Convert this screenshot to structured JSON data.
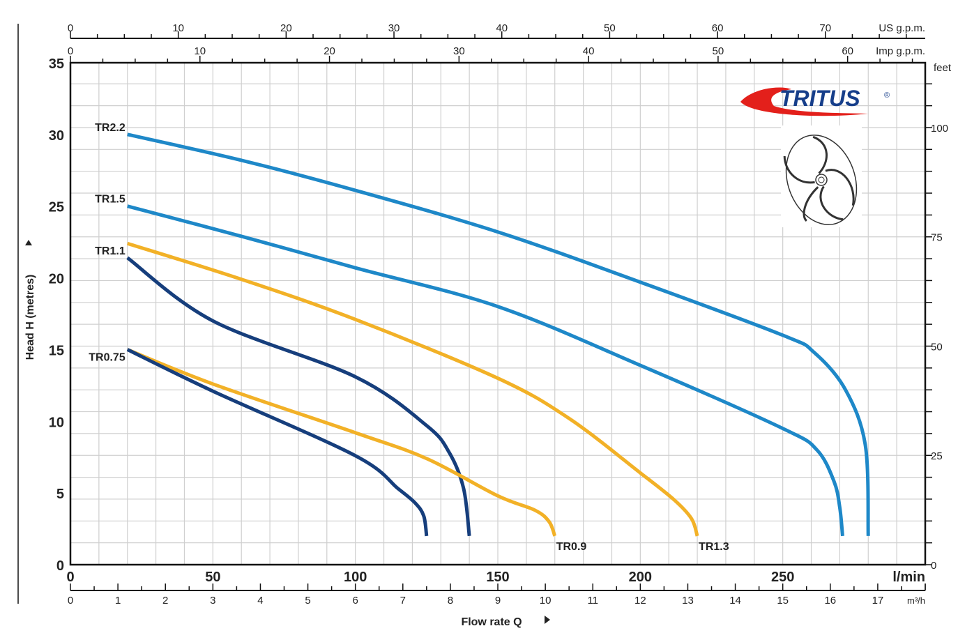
{
  "chart_data": {
    "type": "line",
    "title": "",
    "xlabel": "Flow rate Q",
    "ylabel": "Head H (metres)",
    "xlim": [
      0,
      300
    ],
    "ylim": [
      0,
      35
    ],
    "grid": true,
    "x_unit": "l/min",
    "x_ticks": [
      0,
      50,
      100,
      150,
      200,
      250
    ],
    "y_ticks": [
      0,
      5,
      10,
      15,
      20,
      25,
      30,
      35
    ],
    "secondary_axes": {
      "us_gpm": {
        "label": "US g.p.m.",
        "ticks": [
          0,
          10,
          20,
          30,
          40,
          50,
          60,
          70
        ]
      },
      "imp_gpm": {
        "label": "Imp g.p.m.",
        "ticks": [
          0,
          10,
          20,
          30,
          40,
          50,
          60
        ]
      },
      "m3h": {
        "label": "m³/h",
        "ticks": [
          0,
          1,
          2,
          3,
          4,
          5,
          6,
          7,
          8,
          9,
          10,
          11,
          12,
          13,
          14,
          15,
          16,
          17
        ]
      },
      "feet": {
        "label": "feet",
        "ticks": [
          0,
          25,
          50,
          75,
          100
        ]
      }
    },
    "series": [
      {
        "name": "TR2.2",
        "color": "#1e88c8",
        "label_pos": "start",
        "x": [
          20,
          60,
          100,
          150,
          200,
          250,
          261,
          272,
          279,
          280
        ],
        "y": [
          30,
          28.2,
          26.1,
          23.2,
          19.7,
          16,
          14.8,
          12.2,
          8.3,
          2
        ]
      },
      {
        "name": "TR1.5",
        "color": "#1e88c8",
        "label_pos": "start",
        "x": [
          20,
          60,
          100,
          150,
          200,
          250,
          262,
          268,
          270,
          271
        ],
        "y": [
          25,
          22.9,
          20.7,
          18,
          13.9,
          9.5,
          8,
          5.8,
          4,
          2
        ]
      },
      {
        "name": "TR1.3",
        "color": "#f2b127",
        "label_pos": "end",
        "x": [
          20,
          60,
          100,
          150,
          175,
          200,
          212,
          218,
          220
        ],
        "y": [
          22.4,
          19.9,
          17.1,
          13,
          10.2,
          6.4,
          4.5,
          3.2,
          2
        ]
      },
      {
        "name": "TR1.1",
        "color": "#163e7c",
        "label_pos": "start",
        "x": [
          20,
          50,
          100,
          125,
          133,
          138,
          140
        ],
        "y": [
          21.4,
          17,
          13.1,
          9.7,
          7.8,
          5.3,
          2
        ]
      },
      {
        "name": "TR0.9",
        "color": "#f2b127",
        "label_pos": "end",
        "x": [
          20,
          50,
          100,
          125,
          150,
          163,
          168,
          170
        ],
        "y": [
          15,
          12.6,
          9.2,
          7.4,
          4.8,
          3.8,
          3,
          2
        ]
      },
      {
        "name": "TR0.75",
        "color": "#163e7c",
        "label_pos": "start",
        "x": [
          20,
          50,
          100,
          115,
          121,
          124,
          125
        ],
        "y": [
          15,
          12.1,
          7.6,
          5.3,
          4.3,
          3.4,
          2
        ]
      }
    ]
  },
  "logo": {
    "text": "TRITUS",
    "mark": "®",
    "colors": {
      "text": "#163e8a",
      "swoosh": "#e3201b"
    }
  },
  "image": {
    "icon": "impeller-icon"
  }
}
